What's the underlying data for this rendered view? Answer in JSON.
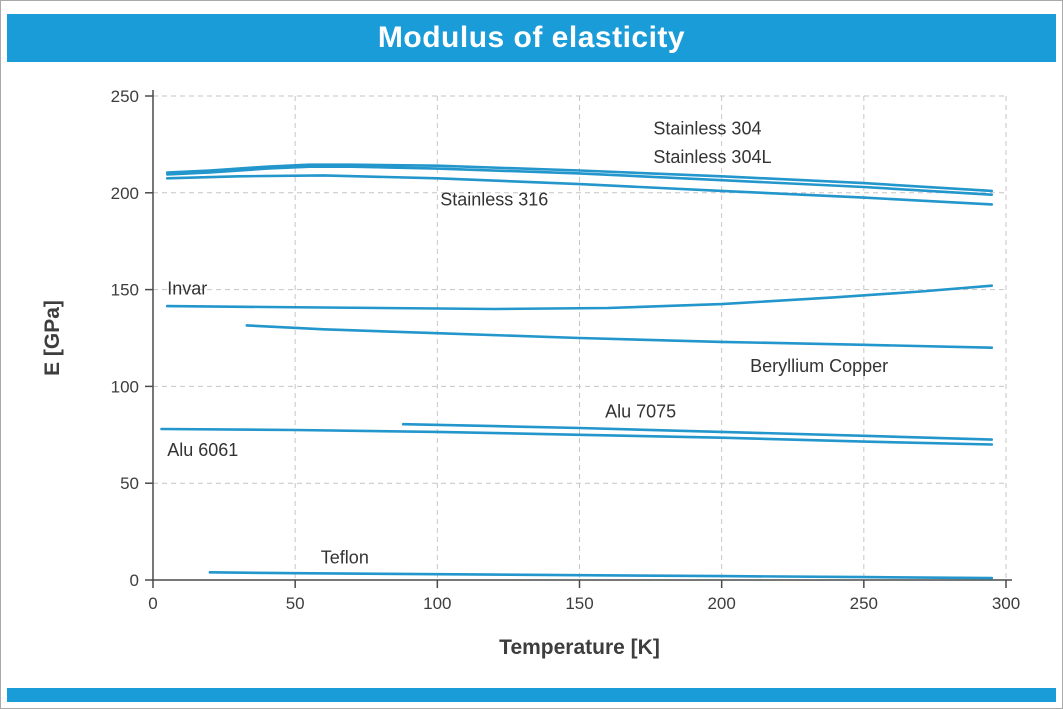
{
  "header": {
    "title": "Modulus of elasticity"
  },
  "colors": {
    "accent": "#1a9cd8",
    "line": "#2396cc",
    "grid": "#c6c6c6",
    "axis": "#4a4a4a",
    "text": "#333333",
    "title_text": "#ffffff"
  },
  "chart_data": {
    "type": "line",
    "title": "Modulus of elasticity",
    "xlabel": "Temperature [K]",
    "ylabel": "E [GPa]",
    "xlim": [
      0,
      300
    ],
    "ylim": [
      0,
      250
    ],
    "xticks": [
      0,
      50,
      100,
      150,
      200,
      250,
      300
    ],
    "yticks": [
      0,
      50,
      100,
      150,
      200,
      250
    ],
    "grid": true,
    "legend_position": "inline-annotations",
    "series": [
      {
        "name": "Stainless 304",
        "x": [
          5,
          20,
          40,
          55,
          70,
          100,
          150,
          200,
          250,
          295
        ],
        "y": [
          210.5,
          211.5,
          213.5,
          214.5,
          214.5,
          214,
          211.5,
          208.5,
          205,
          201
        ]
      },
      {
        "name": "Stainless 304L",
        "x": [
          5,
          20,
          40,
          55,
          70,
          100,
          150,
          200,
          250,
          295
        ],
        "y": [
          209.5,
          210.5,
          212.5,
          213.5,
          213.5,
          212.5,
          210,
          206.5,
          203,
          199
        ]
      },
      {
        "name": "Stainless 316",
        "x": [
          5,
          30,
          60,
          100,
          150,
          200,
          250,
          295
        ],
        "y": [
          207.5,
          208.5,
          209,
          207.5,
          204.5,
          201,
          197.5,
          194
        ]
      },
      {
        "name": "Invar",
        "x": [
          5,
          40,
          80,
          120,
          160,
          200,
          240,
          270,
          295
        ],
        "y": [
          141.5,
          141,
          140.5,
          140,
          140.5,
          142.5,
          146,
          149,
          152
        ]
      },
      {
        "name": "Beryllium Copper",
        "x": [
          33,
          60,
          100,
          150,
          200,
          250,
          295
        ],
        "y": [
          131.5,
          129.5,
          127.5,
          125,
          123,
          121.5,
          120
        ]
      },
      {
        "name": "Alu 7075",
        "x": [
          88,
          120,
          150,
          200,
          250,
          295
        ],
        "y": [
          80.5,
          79.5,
          78.5,
          76.5,
          74.5,
          72.5
        ]
      },
      {
        "name": "Alu 6061",
        "x": [
          3,
          50,
          100,
          150,
          200,
          250,
          295
        ],
        "y": [
          78,
          77.5,
          76.5,
          75,
          73.5,
          71.5,
          70
        ]
      },
      {
        "name": "Teflon",
        "x": [
          20,
          50,
          100,
          150,
          200,
          250,
          295
        ],
        "y": [
          4,
          3.5,
          3,
          2.5,
          2,
          1.5,
          1
        ]
      }
    ],
    "annotations": [
      {
        "text": "Stainless 304",
        "x": 176,
        "y": 230
      },
      {
        "text": "Stainless 304L",
        "x": 176,
        "y": 215.5
      },
      {
        "text": "Stainless 316",
        "x": 101,
        "y": 193.5
      },
      {
        "text": "Invar",
        "x": 5,
        "y": 147.5
      },
      {
        "text": "Beryllium Copper",
        "x": 210,
        "y": 107.5
      },
      {
        "text": "Alu 7075",
        "x": 159,
        "y": 84
      },
      {
        "text": "Alu 6061",
        "x": 5,
        "y": 64
      },
      {
        "text": "Teflon",
        "x": 59,
        "y": 8.5
      }
    ]
  }
}
